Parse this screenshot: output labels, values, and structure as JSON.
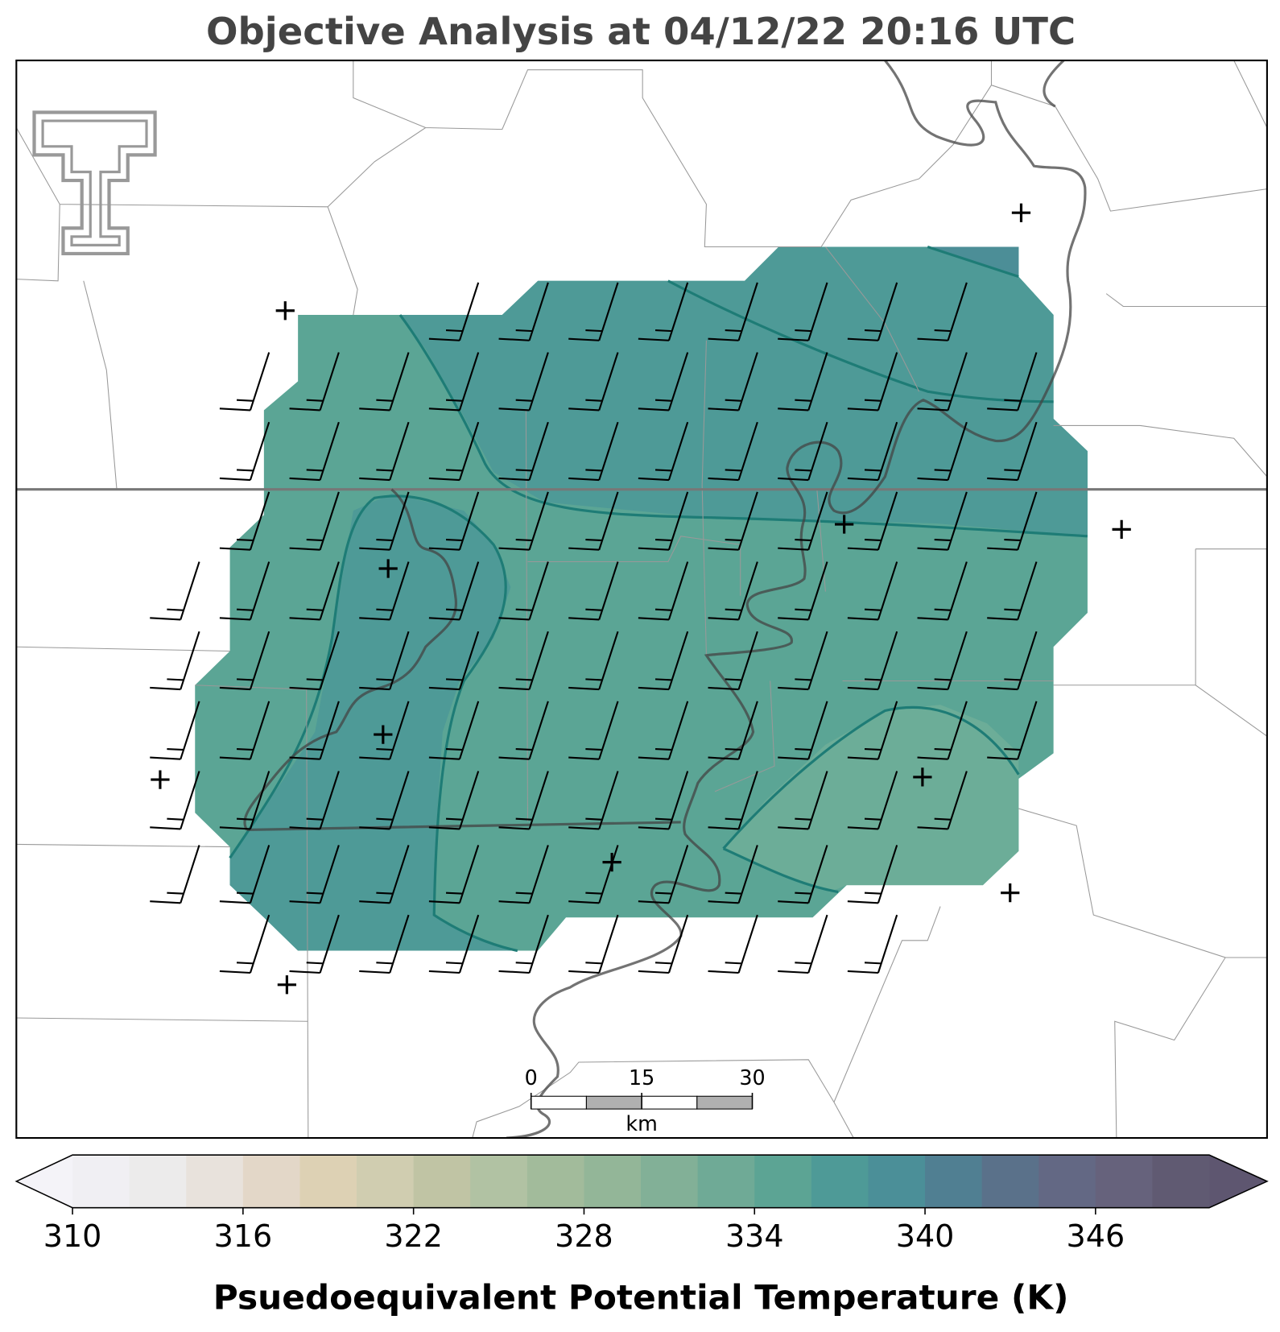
{
  "title": "Objective Analysis at 04/12/22 20:16 UTC",
  "colorbar": {
    "label": "Psuedoequivalent Potential Temperature (K)",
    "lim": [
      310,
      350
    ],
    "ticks": [
      310,
      316,
      322,
      328,
      334,
      340,
      346
    ],
    "colors": [
      "#f0eff3",
      "#ecebeb",
      "#e8e2dc",
      "#e3d7c8",
      "#ddd1b4",
      "#d0cdb0",
      "#c0c4a4",
      "#b1c2a3",
      "#a2bb9b",
      "#93b698",
      "#82b097",
      "#6faa96",
      "#5ca494",
      "#4e9a97",
      "#4b8f98",
      "#507f92",
      "#5a718a",
      "#636884",
      "#66627c",
      "#605a72"
    ],
    "under_color": "#f4f3f8",
    "over_color": "#5e5670"
  },
  "scalebar": {
    "ticks": [
      0,
      15,
      30
    ],
    "unit": "km"
  }
}
